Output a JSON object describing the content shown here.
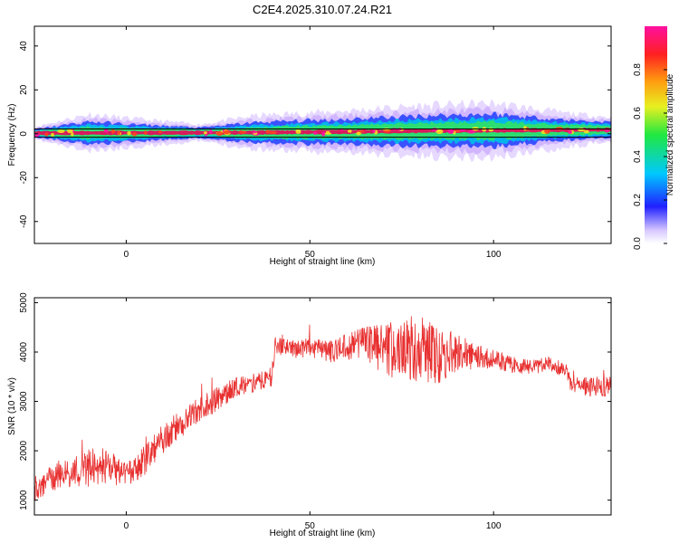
{
  "title": "C2E4.2025.310.07.24.R21",
  "colors": {
    "snr_line": "#e83030",
    "frame": "#000000",
    "center_band": "#e0105a",
    "green": "#2ee06a",
    "blue": "#2040ff",
    "violet": "#c8a8ff"
  },
  "chart_data": [
    {
      "type": "heatmap",
      "name": "spectrogram",
      "xlabel": "Height of straight line (km)",
      "ylabel": "Frequency (Hz)",
      "xlim": [
        -25,
        132
      ],
      "ylim": [
        -50,
        49
      ],
      "xticks": [
        0,
        50,
        100
      ],
      "xtick_labels": [
        "0",
        "50",
        "100"
      ],
      "yticks": [
        40,
        20,
        0,
        -20,
        -40
      ],
      "ytick_labels": [
        "40",
        "20",
        "0",
        "-20",
        "-40"
      ],
      "band_center_hz": [
        [
          -25,
          0.3
        ],
        [
          30,
          0.5
        ],
        [
          60,
          0.9
        ],
        [
          90,
          1.4
        ],
        [
          132,
          1.8
        ]
      ],
      "band_halfwidth_hz": [
        [
          -25,
          1.5
        ],
        [
          -10,
          4.5
        ],
        [
          0,
          3.5
        ],
        [
          20,
          2.0
        ],
        [
          35,
          4.0
        ],
        [
          60,
          5.0
        ],
        [
          80,
          6.0
        ],
        [
          100,
          6.5
        ],
        [
          120,
          4.0
        ],
        [
          132,
          3.0
        ]
      ],
      "colorbar": {
        "label": "Normalized spectral amplitude",
        "range": [
          0.0,
          1.0
        ],
        "ticks": [
          0.0,
          0.2,
          0.4,
          0.6,
          0.8
        ],
        "tick_labels": [
          "0.0",
          "0.2",
          "0.4",
          "0.6",
          "0.8"
        ]
      }
    },
    {
      "type": "line",
      "name": "snr",
      "xlabel": "Height of straight line (km)",
      "ylabel": "SNR (10 * v/v)",
      "xlim": [
        -25,
        132
      ],
      "ylim": [
        700,
        5100
      ],
      "xticks": [
        0,
        50,
        100
      ],
      "xtick_labels": [
        "0",
        "50",
        "100"
      ],
      "yticks": [
        1000,
        2000,
        3000,
        4000,
        5000
      ],
      "ytick_labels": [
        "1000",
        "2000",
        "3000",
        "4000",
        "5000"
      ],
      "envelope": {
        "x": [
          -25,
          -20,
          -15,
          -10,
          -5,
          0,
          5,
          10,
          15,
          20,
          25,
          30,
          39.5,
          40.5,
          45,
          50,
          55,
          60,
          65,
          70,
          75,
          80,
          85,
          90,
          95,
          100,
          105,
          110,
          115,
          120,
          121,
          125,
          132
        ],
        "mean": [
          1150,
          1450,
          1550,
          1650,
          1700,
          1500,
          1800,
          2250,
          2550,
          2850,
          3050,
          3300,
          3450,
          4150,
          4050,
          4100,
          4000,
          4100,
          4200,
          4050,
          4050,
          4100,
          3900,
          4000,
          3900,
          3850,
          3750,
          3700,
          3750,
          3650,
          3350,
          3300,
          3300
        ],
        "spread": [
          200,
          300,
          300,
          400,
          350,
          250,
          300,
          300,
          300,
          250,
          250,
          200,
          200,
          180,
          180,
          200,
          220,
          280,
          350,
          550,
          600,
          700,
          550,
          400,
          250,
          200,
          180,
          150,
          150,
          150,
          180,
          200,
          220
        ]
      }
    }
  ]
}
